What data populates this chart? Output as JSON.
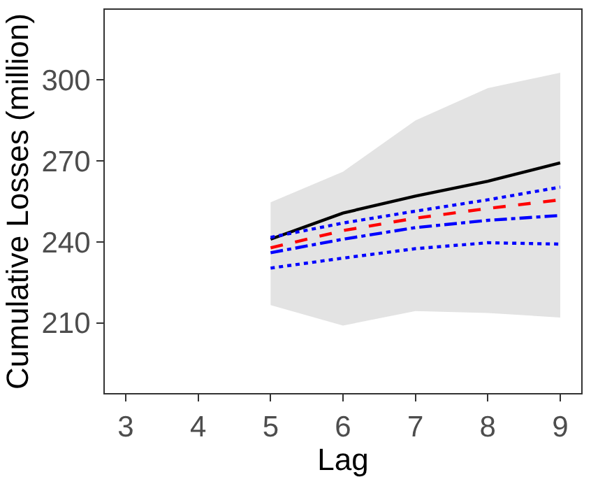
{
  "chart_data": {
    "type": "line",
    "xlabel": "Lag",
    "ylabel": "Cumulative Losses (million)",
    "x": [
      5,
      6,
      7,
      8,
      9
    ],
    "series": [
      {
        "color": "#000000",
        "line_style": "solid",
        "values": [
          241,
          250.7,
          257,
          262.5,
          269.3
        ],
        "lower": [
          216.6,
          209,
          214.4,
          213.7,
          212
        ],
        "upper": [
          254.7,
          266,
          285,
          297,
          302.7
        ]
      },
      {
        "color": "#0000ff",
        "line_style": "dotted",
        "values": [
          241.7,
          247,
          251.4,
          255.6,
          260.3
        ]
      },
      {
        "color": "#ff0000",
        "line_style": "dashed",
        "values": [
          237.8,
          244.2,
          248.8,
          252.4,
          255.6
        ]
      },
      {
        "color": "#0000ff",
        "line_style": "dashdot",
        "values": [
          236,
          241,
          245.3,
          248,
          249.8
        ]
      },
      {
        "color": "#0000ff",
        "line_style": "dotted",
        "values": [
          230.3,
          234,
          237.5,
          239.7,
          239.2
        ]
      }
    ],
    "xlim": [
      2.71,
      9.29
    ],
    "xticks": [
      3,
      4,
      5,
      6,
      7,
      8,
      9
    ],
    "ylim": [
      184,
      326
    ],
    "yticks": [
      210,
      240,
      270,
      300
    ],
    "grid": false,
    "marker": "none"
  }
}
